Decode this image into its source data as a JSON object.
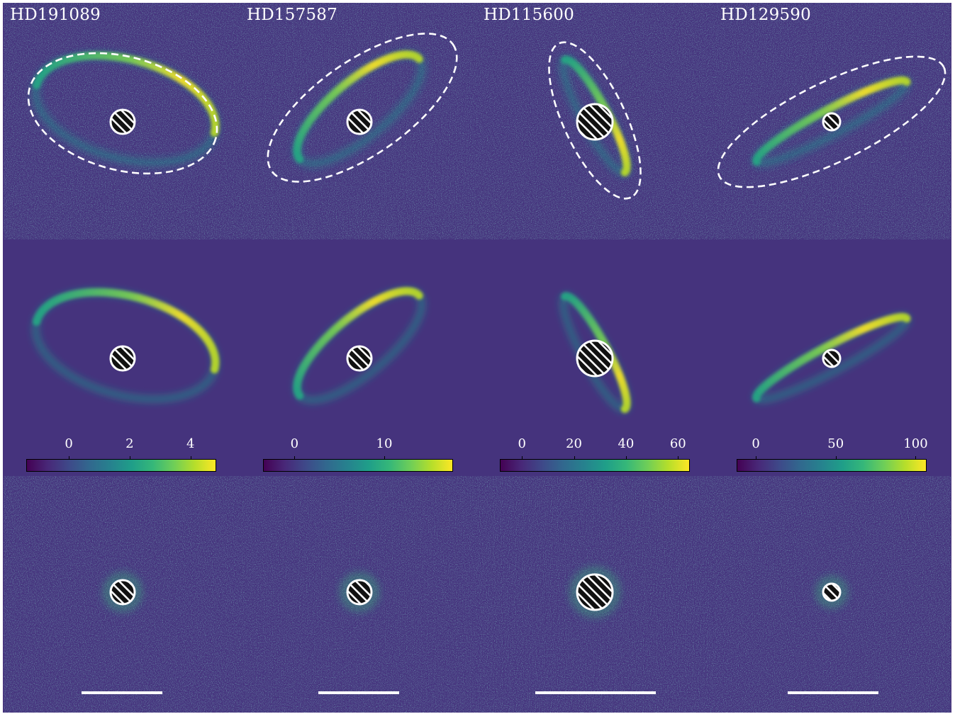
{
  "stars": [
    "HD191089",
    "HD157587",
    "HD115600",
    "HD129590"
  ],
  "colorbars": [
    {
      "min": -1.4,
      "max": 4.8,
      "ticks": [
        0,
        2,
        4
      ]
    },
    {
      "min": -3.5,
      "max": 17.5,
      "ticks": [
        0,
        10
      ]
    },
    {
      "min": -8.5,
      "max": 64,
      "ticks": [
        0,
        20,
        40,
        60
      ]
    },
    {
      "min": -12,
      "max": 106,
      "ticks": [
        0,
        50,
        100
      ]
    }
  ],
  "colormap": "viridis",
  "rows": [
    "observed",
    "model",
    "residual"
  ]
}
